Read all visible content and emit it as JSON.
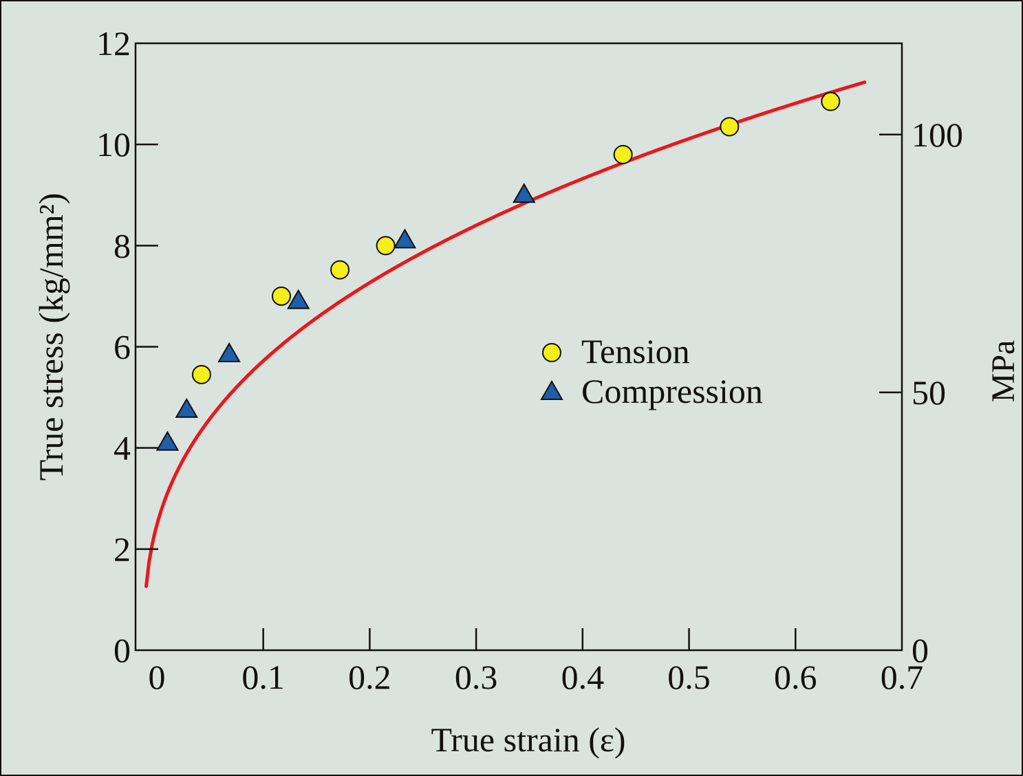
{
  "chart_data": {
    "type": "scatter",
    "xlabel": "True strain (ε)",
    "ylabel": "True stress (kg/mm²)",
    "y2label": "MPa",
    "xlim": [
      -0.02,
      0.7
    ],
    "ylim": [
      0,
      12
    ],
    "y2lim": [
      0,
      117.7
    ],
    "x_ticks": [
      0,
      0.1,
      0.2,
      0.3,
      0.4,
      0.5,
      0.6,
      0.7
    ],
    "x_tick_labels": [
      "0",
      "0.1",
      "0.2",
      "0.3",
      "0.4",
      "0.5",
      "0.6",
      "0.7"
    ],
    "y_ticks": [
      0,
      2,
      4,
      6,
      8,
      10,
      12
    ],
    "y_tick_labels": [
      "0",
      "2",
      "4",
      "6",
      "8",
      "10",
      "12"
    ],
    "y2_ticks": [
      0,
      50,
      100
    ],
    "y2_tick_labels": [
      "0",
      "50",
      "100"
    ],
    "grid": false,
    "legend_position": "center-right",
    "series": [
      {
        "name": "Tension",
        "marker": "circle",
        "color": "#f5ee1a",
        "points": [
          {
            "x": 0.042,
            "y": 5.45
          },
          {
            "x": 0.117,
            "y": 7.0
          },
          {
            "x": 0.172,
            "y": 7.52
          },
          {
            "x": 0.215,
            "y": 8.0
          },
          {
            "x": 0.438,
            "y": 9.8
          },
          {
            "x": 0.538,
            "y": 10.35
          },
          {
            "x": 0.633,
            "y": 10.85
          }
        ]
      },
      {
        "name": "Compression",
        "marker": "triangle",
        "color": "#1f5ea8",
        "points": [
          {
            "x": 0.01,
            "y": 4.1
          },
          {
            "x": 0.028,
            "y": 4.75
          },
          {
            "x": 0.068,
            "y": 5.85
          },
          {
            "x": 0.133,
            "y": 6.9
          },
          {
            "x": 0.233,
            "y": 8.1
          },
          {
            "x": 0.345,
            "y": 9.0
          }
        ]
      }
    ],
    "fit_curve": {
      "color": "#e8191c",
      "x_range": [
        -0.01,
        0.665
      ],
      "model": "power",
      "A": 13.0,
      "n": 0.375
    }
  }
}
